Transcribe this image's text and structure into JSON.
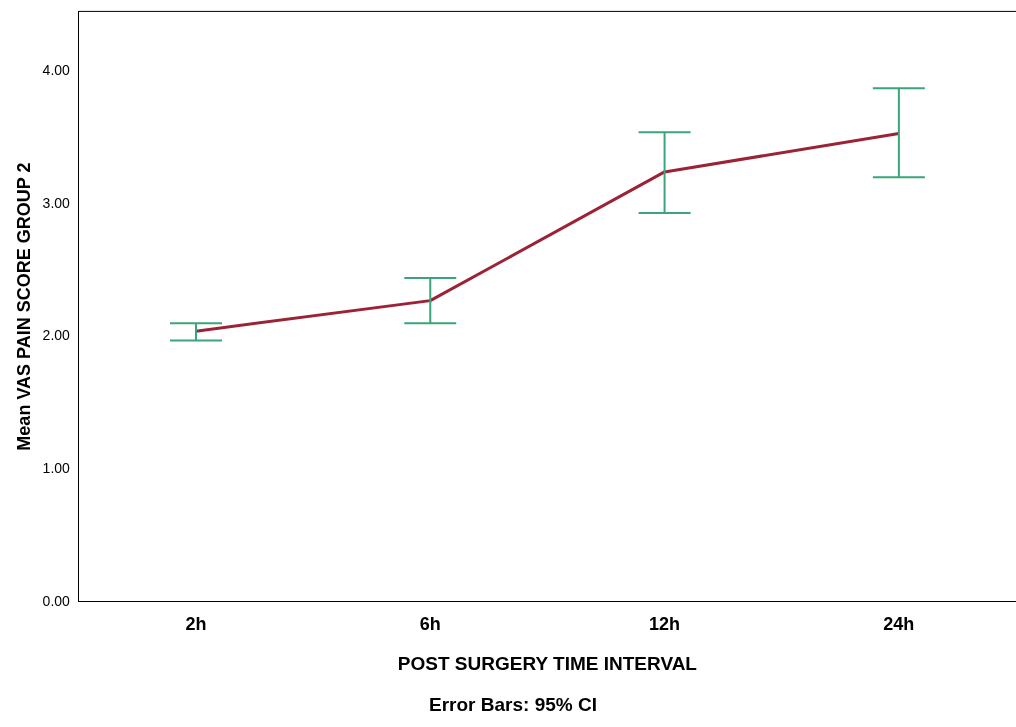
{
  "chart_data": {
    "type": "line",
    "xlabel": "POST SURGERY TIME INTERVAL",
    "ylabel": "Mean VAS PAIN SCORE GROUP 2",
    "annotations": [
      "Error Bars: 95% CI"
    ],
    "categories": [
      "2h",
      "6h",
      "12h",
      "24h"
    ],
    "series": [
      {
        "color": "#9b2335",
        "values": [
          2.04,
          2.27,
          3.24,
          3.53
        ],
        "errors": [
          [
            1.97,
            2.1
          ],
          [
            2.1,
            2.44
          ],
          [
            2.93,
            3.54
          ],
          [
            3.2,
            3.87
          ]
        ]
      }
    ],
    "ylim": [
      0,
      4.45
    ],
    "yticks": [
      {
        "value": 0,
        "label": "0.00"
      },
      {
        "value": 1,
        "label": "1.00"
      },
      {
        "value": 2,
        "label": "2.00"
      },
      {
        "value": 3,
        "label": "3.00"
      },
      {
        "value": 4,
        "label": "4.00"
      }
    ],
    "grid": false,
    "legend": false,
    "marker": "none",
    "line_style": "solid"
  }
}
